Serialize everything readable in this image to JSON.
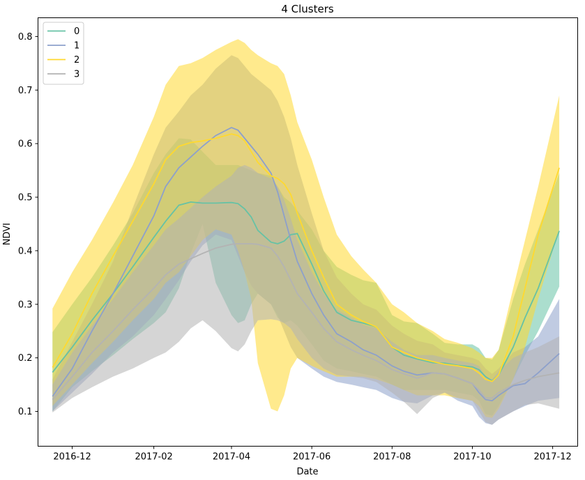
{
  "chart_data": {
    "type": "line",
    "title": "4 Clusters",
    "xlabel": "Date",
    "ylabel": "NDVI",
    "x_ticks": [
      "2016-12",
      "2017-02",
      "2017-04",
      "2017-06",
      "2017-08",
      "2017-10",
      "2017-12"
    ],
    "y_ticks": [
      "0.1",
      "0.2",
      "0.3",
      "0.4",
      "0.5",
      "0.6",
      "0.7",
      "0.8"
    ],
    "xlim": [
      "2016-11-05",
      "2017-12-20"
    ],
    "ylim": [
      0.035,
      0.835
    ],
    "grid": false,
    "legend_position": "top-left",
    "x": [
      "2016-11-16",
      "2016-12-01",
      "2016-12-16",
      "2017-01-01",
      "2017-01-16",
      "2017-02-01",
      "2017-02-10",
      "2017-02-20",
      "2017-03-01",
      "2017-03-10",
      "2017-03-20",
      "2017-04-01",
      "2017-04-06",
      "2017-04-11",
      "2017-04-16",
      "2017-04-21",
      "2017-05-01",
      "2017-05-06",
      "2017-05-11",
      "2017-05-16",
      "2017-05-21",
      "2017-06-01",
      "2017-06-10",
      "2017-06-20",
      "2017-07-01",
      "2017-07-10",
      "2017-07-20",
      "2017-08-01",
      "2017-08-10",
      "2017-08-20",
      "2017-09-01",
      "2017-09-10",
      "2017-09-20",
      "2017-10-01",
      "2017-10-06",
      "2017-10-11",
      "2017-10-16",
      "2017-10-21",
      "2017-11-01",
      "2017-11-10",
      "2017-11-20",
      "2017-12-06"
    ],
    "series": [
      {
        "name": "0",
        "color": "#66c2a5",
        "mean": [
          0.173,
          0.22,
          0.27,
          0.32,
          0.37,
          0.425,
          0.455,
          0.485,
          0.491,
          0.489,
          0.489,
          0.49,
          0.488,
          0.478,
          0.463,
          0.438,
          0.416,
          0.413,
          0.418,
          0.43,
          0.432,
          0.375,
          0.325,
          0.285,
          0.27,
          0.265,
          0.258,
          0.22,
          0.205,
          0.198,
          0.191,
          0.19,
          0.186,
          0.183,
          0.178,
          0.165,
          0.157,
          0.168,
          0.22,
          0.275,
          0.33,
          0.437
        ],
        "upper": [
          0.248,
          0.3,
          0.35,
          0.41,
          0.47,
          0.545,
          0.58,
          0.61,
          0.608,
          0.585,
          0.56,
          0.56,
          0.56,
          0.555,
          0.55,
          0.545,
          0.54,
          0.52,
          0.5,
          0.49,
          0.475,
          0.44,
          0.4,
          0.37,
          0.355,
          0.345,
          0.34,
          0.28,
          0.268,
          0.265,
          0.245,
          0.228,
          0.225,
          0.225,
          0.218,
          0.2,
          0.197,
          0.215,
          0.31,
          0.375,
          0.44,
          0.545
        ],
        "lower": [
          0.1,
          0.145,
          0.175,
          0.205,
          0.235,
          0.265,
          0.285,
          0.33,
          0.395,
          0.45,
          0.34,
          0.28,
          0.265,
          0.27,
          0.3,
          0.32,
          0.3,
          0.275,
          0.265,
          0.27,
          0.26,
          0.225,
          0.195,
          0.18,
          0.175,
          0.17,
          0.165,
          0.15,
          0.14,
          0.14,
          0.14,
          0.14,
          0.135,
          0.13,
          0.12,
          0.095,
          0.092,
          0.11,
          0.16,
          0.205,
          0.25,
          0.333
        ]
      },
      {
        "name": "1",
        "color": "#8da0cb",
        "mean": [
          0.128,
          0.18,
          0.25,
          0.32,
          0.39,
          0.465,
          0.52,
          0.555,
          0.575,
          0.595,
          0.615,
          0.63,
          0.625,
          0.61,
          0.595,
          0.58,
          0.545,
          0.51,
          0.465,
          0.42,
          0.38,
          0.32,
          0.28,
          0.245,
          0.23,
          0.215,
          0.205,
          0.185,
          0.175,
          0.168,
          0.172,
          0.17,
          0.162,
          0.152,
          0.135,
          0.122,
          0.12,
          0.13,
          0.148,
          0.152,
          0.172,
          0.208
        ],
        "upper": [
          0.16,
          0.23,
          0.3,
          0.38,
          0.48,
          0.58,
          0.63,
          0.66,
          0.69,
          0.71,
          0.74,
          0.765,
          0.76,
          0.745,
          0.73,
          0.72,
          0.7,
          0.68,
          0.65,
          0.61,
          0.56,
          0.47,
          0.4,
          0.35,
          0.32,
          0.3,
          0.29,
          0.26,
          0.245,
          0.232,
          0.225,
          0.21,
          0.205,
          0.2,
          0.195,
          0.18,
          0.17,
          0.18,
          0.21,
          0.22,
          0.24,
          0.31
        ],
        "lower": [
          0.1,
          0.135,
          0.17,
          0.21,
          0.24,
          0.28,
          0.31,
          0.345,
          0.38,
          0.41,
          0.43,
          0.42,
          0.39,
          0.36,
          0.335,
          0.32,
          0.3,
          0.28,
          0.25,
          0.22,
          0.2,
          0.18,
          0.165,
          0.155,
          0.15,
          0.145,
          0.14,
          0.125,
          0.118,
          0.115,
          0.13,
          0.135,
          0.12,
          0.11,
          0.09,
          0.078,
          0.075,
          0.085,
          0.1,
          0.11,
          0.12,
          0.125
        ]
      },
      {
        "name": "2",
        "color": "#ffd92f",
        "mean": [
          0.182,
          0.245,
          0.32,
          0.39,
          0.455,
          0.525,
          0.57,
          0.595,
          0.602,
          0.605,
          0.61,
          0.618,
          0.615,
          0.605,
          0.585,
          0.565,
          0.54,
          0.535,
          0.525,
          0.505,
          0.47,
          0.4,
          0.35,
          0.3,
          0.28,
          0.268,
          0.258,
          0.22,
          0.21,
          0.2,
          0.193,
          0.188,
          0.185,
          0.18,
          0.172,
          0.16,
          0.156,
          0.168,
          0.24,
          0.33,
          0.43,
          0.555
        ],
        "upper": [
          0.292,
          0.36,
          0.42,
          0.49,
          0.56,
          0.65,
          0.71,
          0.745,
          0.75,
          0.76,
          0.775,
          0.79,
          0.795,
          0.788,
          0.775,
          0.765,
          0.75,
          0.745,
          0.73,
          0.69,
          0.64,
          0.57,
          0.5,
          0.43,
          0.39,
          0.365,
          0.34,
          0.3,
          0.285,
          0.265,
          0.25,
          0.235,
          0.228,
          0.218,
          0.21,
          0.2,
          0.2,
          0.215,
          0.33,
          0.42,
          0.52,
          0.69
        ],
        "lower": [
          0.11,
          0.15,
          0.19,
          0.23,
          0.27,
          0.31,
          0.34,
          0.36,
          0.39,
          0.42,
          0.44,
          0.43,
          0.4,
          0.36,
          0.31,
          0.19,
          0.105,
          0.1,
          0.13,
          0.18,
          0.2,
          0.185,
          0.175,
          0.165,
          0.165,
          0.165,
          0.16,
          0.15,
          0.14,
          0.13,
          0.13,
          0.13,
          0.125,
          0.12,
          0.11,
          0.09,
          0.088,
          0.105,
          0.16,
          0.22,
          0.31,
          0.44
        ]
      },
      {
        "name": "3",
        "color": "#b3b3b3",
        "mean": [
          0.122,
          0.165,
          0.21,
          0.25,
          0.29,
          0.33,
          0.355,
          0.375,
          0.385,
          0.395,
          0.405,
          0.412,
          0.413,
          0.413,
          0.413,
          0.412,
          0.405,
          0.39,
          0.37,
          0.345,
          0.32,
          0.285,
          0.255,
          0.23,
          0.215,
          0.205,
          0.195,
          0.178,
          0.17,
          0.162,
          0.172,
          0.17,
          0.162,
          0.152,
          0.14,
          0.125,
          0.125,
          0.135,
          0.15,
          0.158,
          0.165,
          0.172
        ],
        "upper": [
          0.15,
          0.21,
          0.26,
          0.31,
          0.36,
          0.41,
          0.44,
          0.46,
          0.48,
          0.5,
          0.52,
          0.54,
          0.555,
          0.56,
          0.555,
          0.545,
          0.535,
          0.52,
          0.495,
          0.46,
          0.42,
          0.36,
          0.32,
          0.29,
          0.275,
          0.262,
          0.255,
          0.23,
          0.215,
          0.205,
          0.205,
          0.2,
          0.195,
          0.19,
          0.185,
          0.165,
          0.16,
          0.175,
          0.2,
          0.21,
          0.22,
          0.24
        ],
        "lower": [
          0.098,
          0.125,
          0.145,
          0.165,
          0.18,
          0.2,
          0.21,
          0.23,
          0.255,
          0.27,
          0.25,
          0.218,
          0.212,
          0.225,
          0.25,
          0.27,
          0.272,
          0.27,
          0.265,
          0.255,
          0.235,
          0.2,
          0.18,
          0.168,
          0.165,
          0.162,
          0.155,
          0.135,
          0.118,
          0.095,
          0.125,
          0.135,
          0.125,
          0.12,
          0.1,
          0.08,
          0.075,
          0.085,
          0.1,
          0.112,
          0.115,
          0.105
        ]
      }
    ]
  }
}
